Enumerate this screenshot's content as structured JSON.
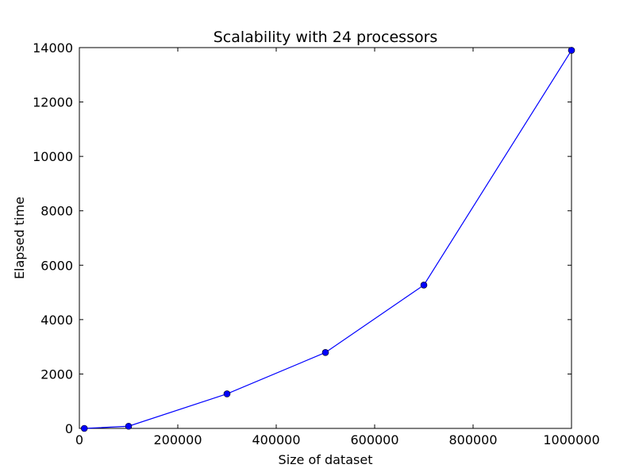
{
  "chart_data": {
    "type": "line",
    "title": "Scalability with 24 processors",
    "xlabel": "Size of dataset",
    "ylabel": "Elapsed time",
    "xlim": [
      0,
      1000000
    ],
    "ylim": [
      0,
      14000
    ],
    "xticks": [
      0,
      200000,
      400000,
      600000,
      800000,
      1000000
    ],
    "yticks": [
      0,
      2000,
      4000,
      6000,
      8000,
      10000,
      12000,
      14000
    ],
    "grid": false,
    "series": [
      {
        "color": "#0000ff",
        "marker": "circle",
        "points": [
          {
            "x": 10000,
            "y": 0
          },
          {
            "x": 100000,
            "y": 80
          },
          {
            "x": 300000,
            "y": 1270
          },
          {
            "x": 500000,
            "y": 2790
          },
          {
            "x": 700000,
            "y": 5270
          },
          {
            "x": 1000000,
            "y": 13900
          }
        ]
      }
    ]
  }
}
